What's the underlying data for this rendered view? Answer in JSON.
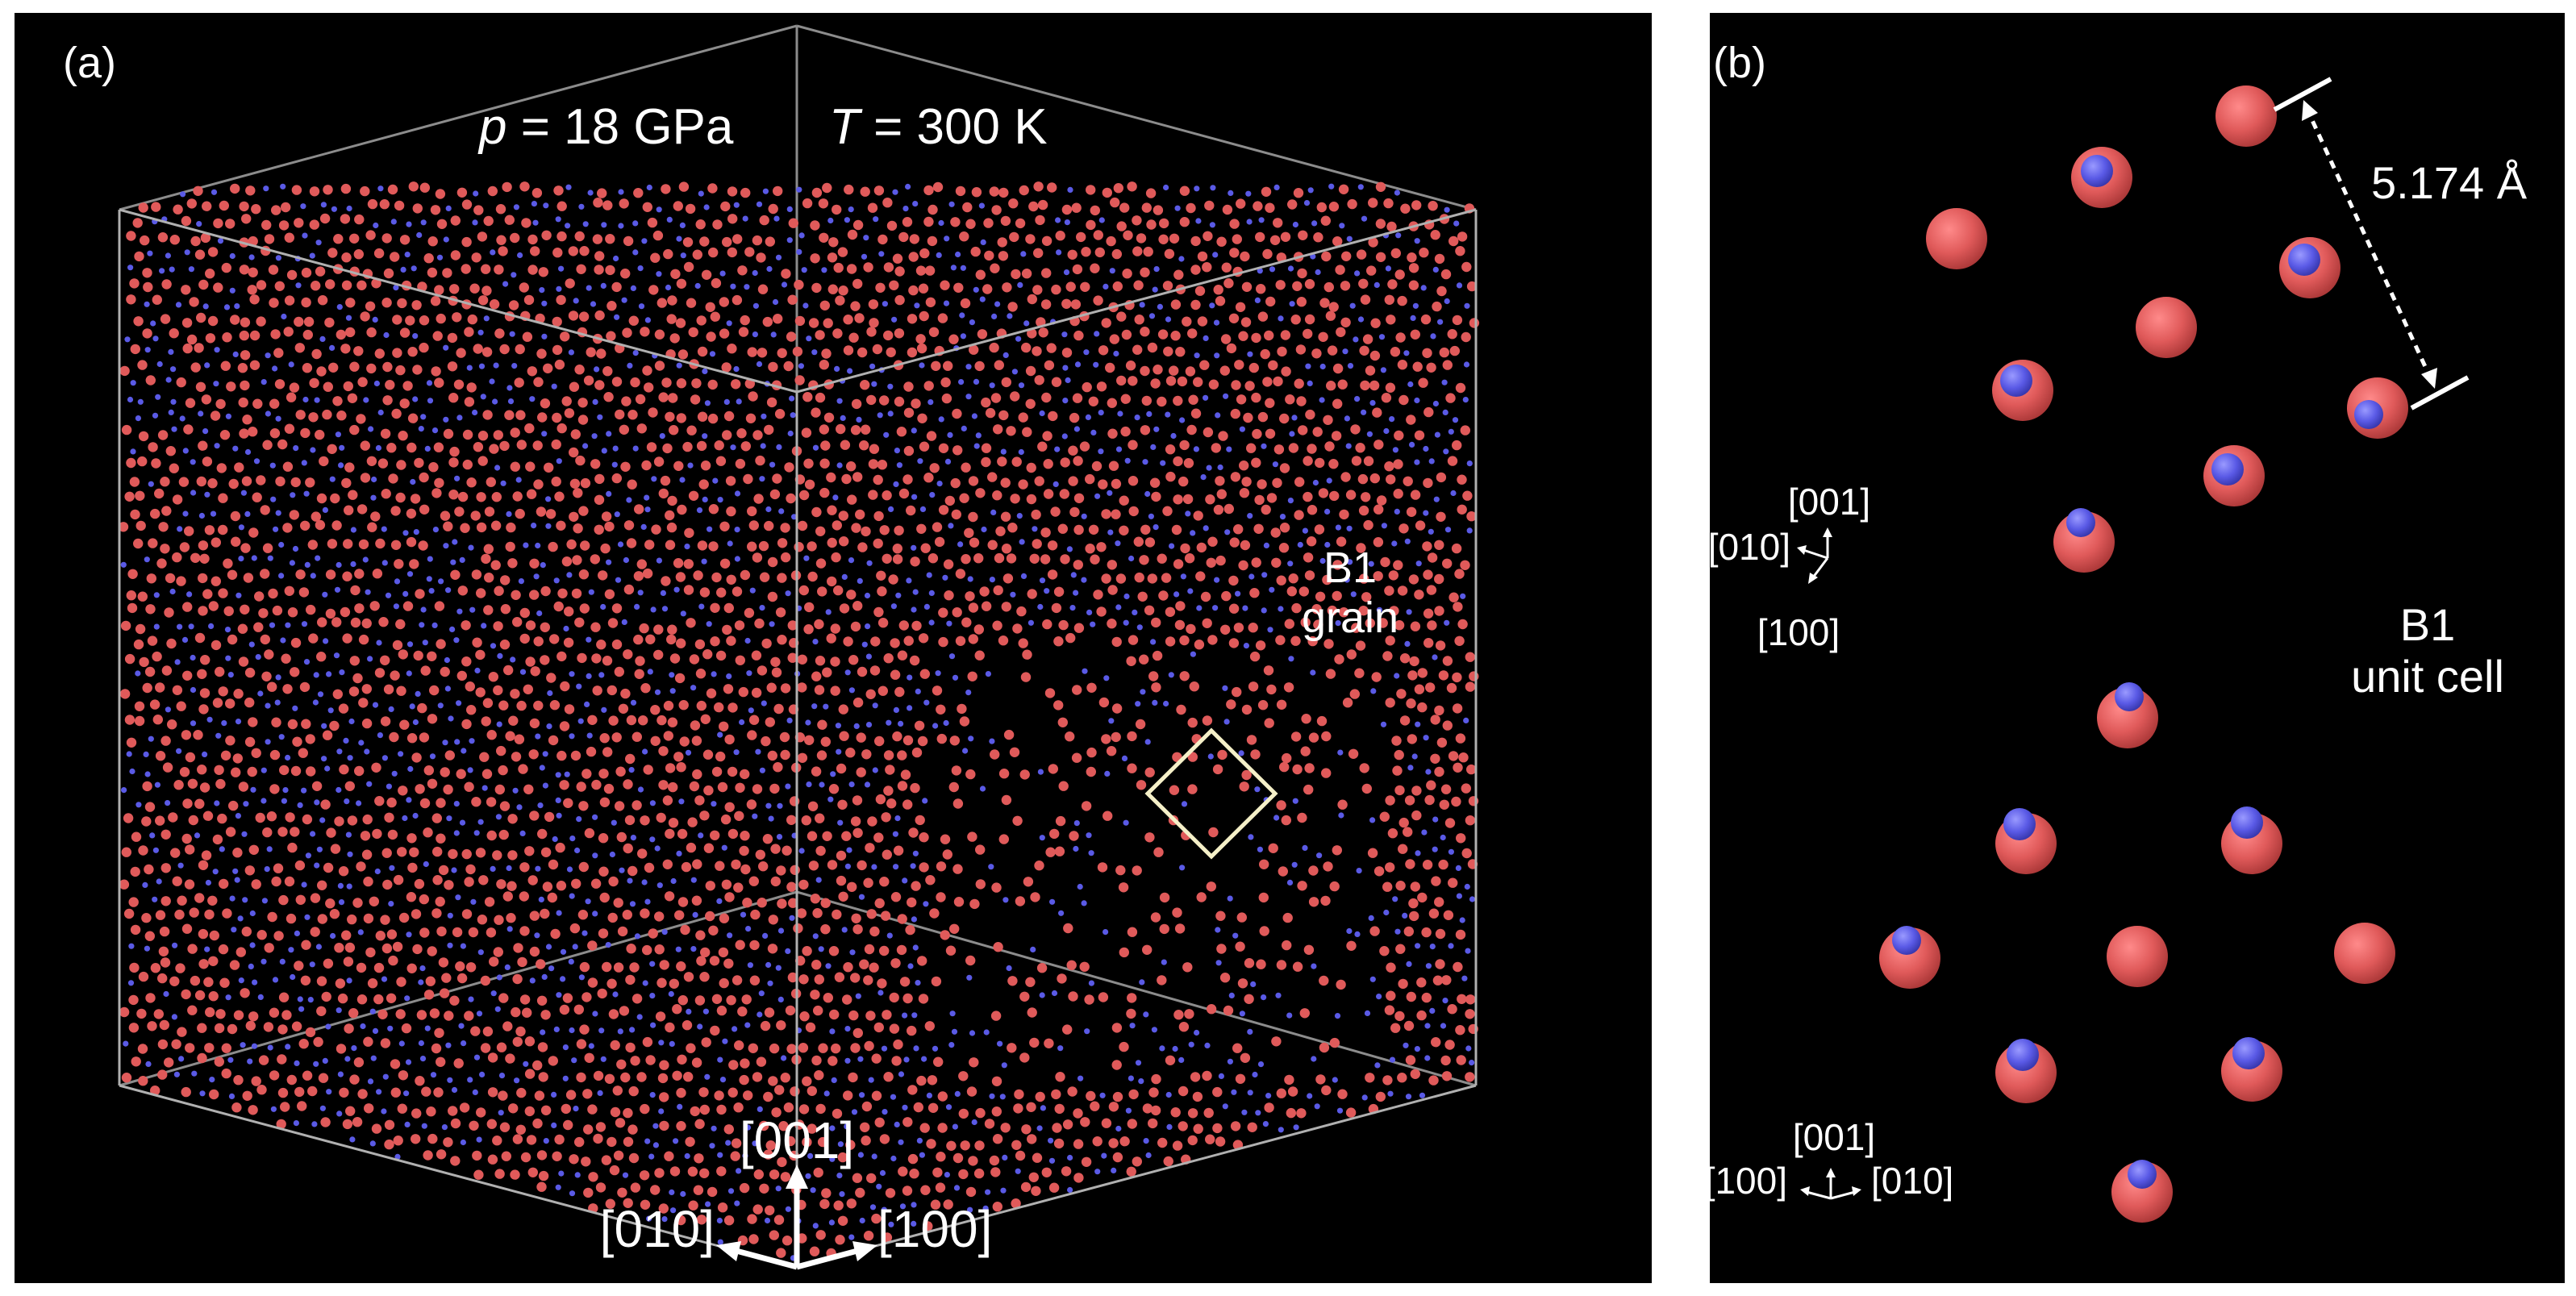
{
  "colors": {
    "background": "#000000",
    "atom_large": "#e05a5a",
    "atom_small": "#5a5ae6",
    "box_edge": "#b0b0b0",
    "unit_cell_outline": "#f5f0c8",
    "text": "#ffffff"
  },
  "panel_a": {
    "label": "(a)",
    "pressure_symbol": "p",
    "pressure_value": " = 18 GPa",
    "temperature_symbol": "T",
    "temperature_value": " = 300 K",
    "grain_label_line1": "B1",
    "grain_label_line2": "grain",
    "axes": {
      "up": "[001]",
      "left": "[010]",
      "right": "[100]"
    }
  },
  "panel_b": {
    "label": "(b)",
    "lattice_parameter": "5.174 Å",
    "unit_cell_label_line1": "B1",
    "unit_cell_label_line2": "unit cell",
    "axes_top": {
      "up": "[001]",
      "left": "[010]",
      "down": "[100]"
    },
    "axes_bottom": {
      "up": "[001]",
      "left": "[100]",
      "right": "[010]"
    }
  }
}
